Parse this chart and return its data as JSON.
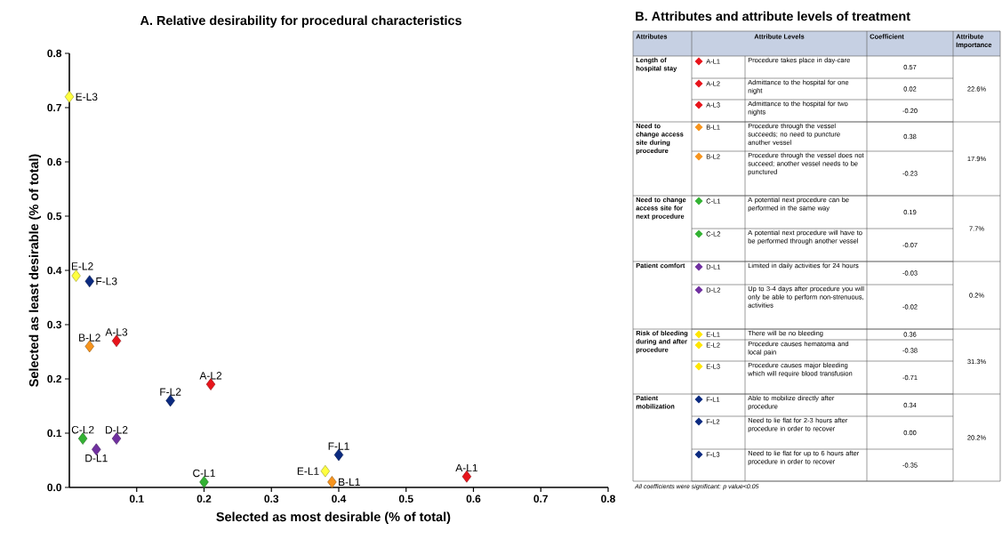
{
  "chart_data": [
    {
      "type": "scatter",
      "title": "A. Relative desirability for procedural characteristics",
      "xlabel": "Selected as most desirable  (% of total)",
      "ylabel": "Selected as least desirable (% of total)",
      "xlim": [
        0,
        0.8
      ],
      "ylim": [
        0,
        0.8
      ],
      "xticks": [
        0.1,
        0.2,
        0.3,
        0.4,
        0.5,
        0.6,
        0.7,
        0.8
      ],
      "yticks": [
        {
          "value": 0,
          "label": "0.0"
        },
        0.1,
        0.2,
        0.3,
        0.4,
        0.5,
        0.6,
        0.7,
        0.8
      ],
      "marker": "diamond",
      "grid": false,
      "series": [
        {
          "color": "#e8141b",
          "x": [
            0.59,
            0.21,
            0.07
          ],
          "values": [
            0.02,
            0.19,
            0.27
          ]
        },
        {
          "color": "#f7941d",
          "x": [
            0.39,
            0.03
          ],
          "values": [
            0.01,
            0.26
          ]
        },
        {
          "color": "#33b233",
          "x": [
            0.2,
            0.02
          ],
          "values": [
            0.01,
            0.09
          ]
        },
        {
          "color": "#7030a0",
          "x": [
            0.04,
            0.07
          ],
          "values": [
            0.07,
            0.09
          ]
        },
        {
          "color": "#ffff40",
          "x": [
            0.38,
            0.01,
            0.0
          ],
          "values": [
            0.03,
            0.39,
            0.72
          ]
        },
        {
          "color": "#0b2a80",
          "x": [
            0.4,
            0.15,
            0.03
          ],
          "values": [
            0.06,
            0.16,
            0.38
          ]
        }
      ],
      "annotations": [
        {
          "text": "A-L1",
          "x": 0.59,
          "y": 0.02
        },
        {
          "text": "A-L2",
          "x": 0.21,
          "y": 0.19
        },
        {
          "text": "A-L3",
          "x": 0.07,
          "y": 0.27
        },
        {
          "text": "B-L1",
          "x": 0.39,
          "y": 0.01
        },
        {
          "text": "B-L2",
          "x": 0.03,
          "y": 0.26
        },
        {
          "text": "C-L1",
          "x": 0.2,
          "y": 0.01
        },
        {
          "text": "C-L2",
          "x": 0.02,
          "y": 0.09
        },
        {
          "text": "D-L1",
          "x": 0.04,
          "y": 0.07
        },
        {
          "text": "D-L2",
          "x": 0.07,
          "y": 0.09
        },
        {
          "text": "E-L1",
          "x": 0.38,
          "y": 0.03
        },
        {
          "text": "E-L2",
          "x": 0.01,
          "y": 0.39
        },
        {
          "text": "E-L3",
          "x": 0.0,
          "y": 0.72
        },
        {
          "text": "F-L1",
          "x": 0.4,
          "y": 0.06
        },
        {
          "text": "F-L2",
          "x": 0.15,
          "y": 0.16
        },
        {
          "text": "F-L3",
          "x": 0.03,
          "y": 0.38
        }
      ]
    },
    {
      "type": "other",
      "title": "B. Attributes and attribute levels of treatment",
      "categories": [
        "Attributes",
        "Attribute Levels",
        "Coefficient",
        "Attribute Importance"
      ],
      "cell_labels": [
        [
          "Length of hospital stay",
          "A-L1",
          "Procedure takes place in day-care",
          "0.57",
          "22.6%"
        ],
        [
          null,
          "A-L2",
          "Admittance to the hospital for one night",
          "0.02",
          null
        ],
        [
          null,
          "A-L3",
          "Admittance to the hospital for two nights",
          "-0.20",
          null
        ],
        [
          "Need to change access site during procedure",
          "B-L1",
          "Procedure through the vessel succeeds; no need to puncture another vessel",
          "0.38",
          "17.9%"
        ],
        [
          null,
          "B-L2",
          "Procedure through the vessel does not succeed; another vessel needs to be punctured",
          "-0.23",
          null
        ],
        [
          "Need to change access site for next procedure",
          "C-L1",
          "A potential next procedure can be performed in the same way",
          "0.19",
          "7.7%"
        ],
        [
          null,
          "C-L2",
          "A potential next procedure will have to be performed through another vessel",
          "-0.07",
          null
        ],
        [
          "Patient comfort",
          "D-L1",
          "Limited in daily activities for 24 hours",
          "-0.03",
          "0.2%"
        ],
        [
          null,
          "D-L2",
          "Up to 3-4 days after procedure you will only be able to perform non-strenuous, activities",
          "-0.02",
          null
        ],
        [
          "Risk of bleeding during and after procedure",
          "E-L1",
          "There will be no bleeding",
          "0.36",
          "31.3%"
        ],
        [
          null,
          "E-L2",
          "Procedure causes hematoma and local pain",
          "-0.38",
          null
        ],
        [
          null,
          "E-L3",
          "Procedure causes major bleeding which will require blood transfusion",
          "-0.71",
          null
        ],
        [
          "Patient mobilization",
          "F-L1",
          "Able to mobilize directly after procedure",
          "0.34",
          "20.2%"
        ],
        [
          null,
          "F-L2",
          "Need to lie flat for 2-3 hours after procedure in order to recover",
          "0.00",
          null
        ],
        [
          null,
          "F-L3",
          "Need to lie flat for up to 6 hours after procedure in order to recover",
          "-0.35",
          null
        ]
      ],
      "annotations": [
        "All coefficients were significant: p value<0.05"
      ]
    }
  ]
}
